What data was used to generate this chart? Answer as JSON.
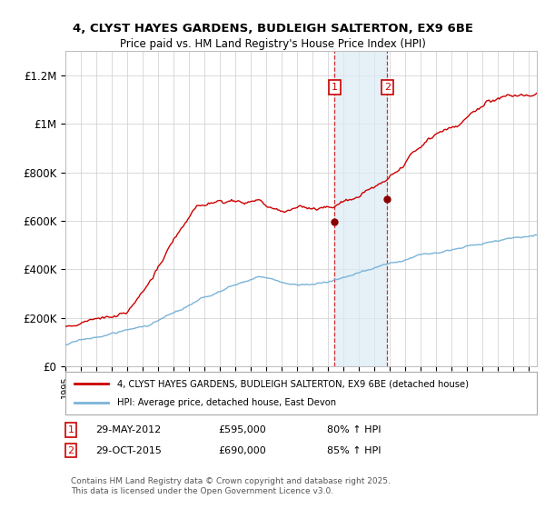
{
  "title_line1": "4, CLYST HAYES GARDENS, BUDLEIGH SALTERTON, EX9 6BE",
  "title_line2": "Price paid vs. HM Land Registry's House Price Index (HPI)",
  "ylabel_ticks": [
    "£0",
    "£200K",
    "£400K",
    "£600K",
    "£800K",
    "£1M",
    "£1.2M"
  ],
  "ytick_values": [
    0,
    200000,
    400000,
    600000,
    800000,
    1000000,
    1200000
  ],
  "ylim": [
    0,
    1300000
  ],
  "xlim_start": 1995,
  "xlim_end": 2025.5,
  "sale1": {
    "date_year": 2012.41,
    "price": 595000,
    "label": "1",
    "date_str": "29-MAY-2012",
    "pct": "80% ↑ HPI"
  },
  "sale2": {
    "date_year": 2015.83,
    "price": 690000,
    "label": "2",
    "date_str": "29-OCT-2015",
    "pct": "85% ↑ HPI"
  },
  "hpi_line_color": "#7ab4d8",
  "sale_line_color": "#cc0000",
  "sale_dot_color": "#8b0000",
  "vline_color": "#cc0000",
  "shading_color": "#daeaf5",
  "grid_color": "#cccccc",
  "legend_box_color": "#cc0000",
  "copyright_text": "Contains HM Land Registry data © Crown copyright and database right 2025.\nThis data is licensed under the Open Government Licence v3.0.",
  "legend1_label": "4, CLYST HAYES GARDENS, BUDLEIGH SALTERTON, EX9 6BE (detached house)",
  "legend2_label": "HPI: Average price, detached house, East Devon",
  "annotation_rows": [
    {
      "label": "1",
      "date": "29-MAY-2012",
      "price": "£595,000",
      "pct": "80% ↑ HPI"
    },
    {
      "label": "2",
      "date": "29-OCT-2015",
      "price": "£690,000",
      "pct": "85% ↑ HPI"
    }
  ]
}
